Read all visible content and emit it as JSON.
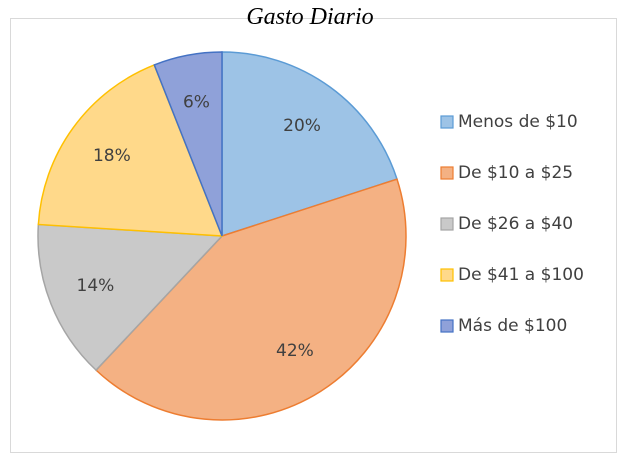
{
  "chart_data": {
    "type": "pie",
    "title": "Gasto Diario",
    "categories": [
      "Menos de $10",
      "De $10 a $25",
      "De $26 a $40",
      "De $41 a $100",
      "Más de $100"
    ],
    "values": [
      20,
      42,
      14,
      18,
      6
    ],
    "value_labels": [
      "20%",
      "42%",
      "14%",
      "18%",
      "6%"
    ],
    "colors": [
      "#9dc3e6",
      "#f4b183",
      "#c9c9c9",
      "#ffd98a",
      "#8fa1d9"
    ],
    "edge_colors": [
      "#5b9bd5",
      "#ed7d31",
      "#a5a5a5",
      "#ffc000",
      "#4472c4"
    ],
    "legend": "right"
  }
}
